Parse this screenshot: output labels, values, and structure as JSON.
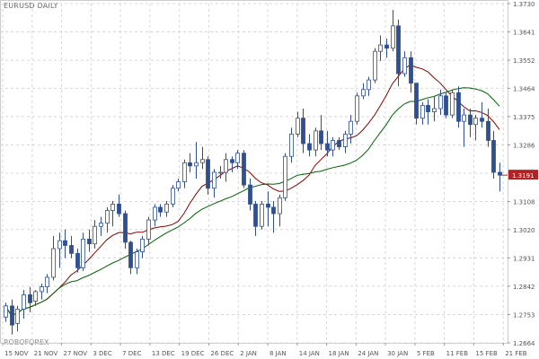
{
  "chart_data": {
    "type": "candlestick",
    "title": "EURUSD DAILY",
    "watermark": "ROBOFOREX",
    "current_price_label": "1.3191",
    "y_ticks": [
      "1.3730",
      "1.3641",
      "1.3552",
      "1.3464",
      "1.3375",
      "1.3286",
      "1.3197",
      "1.3108",
      "1.3020",
      "1.2931",
      "1.2842",
      "1.2753",
      "1.2664"
    ],
    "x_ticks": [
      "15 NOV",
      "21 NOV",
      "27 NOV",
      "3 DEC",
      "7 DEC",
      "13 DEC",
      "19 DEC",
      "26 DEC",
      "2 JAN",
      "8 JAN",
      "14 JAN",
      "18 JAN",
      "24 JAN",
      "30 JAN",
      "5 FEB",
      "11 FEB",
      "15 FEB",
      "21 FEB"
    ],
    "ylim": [
      1.2664,
      1.373
    ],
    "grid": true,
    "candles": [
      [
        1.2745,
        1.279,
        1.273,
        1.278
      ],
      [
        1.278,
        1.28,
        1.269,
        1.272
      ],
      [
        1.2725,
        1.278,
        1.27,
        1.277
      ],
      [
        1.277,
        1.283,
        1.274,
        1.2815
      ],
      [
        1.2815,
        1.284,
        1.276,
        1.279
      ],
      [
        1.2795,
        1.283,
        1.278,
        1.2825
      ],
      [
        1.2825,
        1.285,
        1.28,
        1.284
      ],
      [
        1.284,
        1.288,
        1.282,
        1.287
      ],
      [
        1.287,
        1.3,
        1.286,
        1.296
      ],
      [
        1.296,
        1.301,
        1.29,
        1.2985
      ],
      [
        1.2985,
        1.302,
        1.293,
        1.297
      ],
      [
        1.297,
        1.3,
        1.293,
        1.2945
      ],
      [
        1.2945,
        1.296,
        1.2885,
        1.29
      ],
      [
        1.29,
        1.301,
        1.289,
        1.299
      ],
      [
        1.299,
        1.302,
        1.295,
        1.2975
      ],
      [
        1.2975,
        1.305,
        1.296,
        1.303
      ],
      [
        1.303,
        1.306,
        1.3,
        1.304
      ],
      [
        1.304,
        1.309,
        1.301,
        1.308
      ],
      [
        1.308,
        1.311,
        1.303,
        1.31
      ],
      [
        1.31,
        1.313,
        1.306,
        1.307
      ],
      [
        1.307,
        1.308,
        1.296,
        1.298
      ],
      [
        1.298,
        1.2985,
        1.288,
        1.29
      ],
      [
        1.29,
        1.296,
        1.288,
        1.295
      ],
      [
        1.295,
        1.3,
        1.293,
        1.299
      ],
      [
        1.299,
        1.306,
        1.297,
        1.305
      ],
      [
        1.305,
        1.31,
        1.303,
        1.309
      ],
      [
        1.309,
        1.31,
        1.306,
        1.3075
      ],
      [
        1.3075,
        1.311,
        1.306,
        1.31
      ],
      [
        1.31,
        1.316,
        1.309,
        1.315
      ],
      [
        1.315,
        1.318,
        1.314,
        1.317
      ],
      [
        1.317,
        1.324,
        1.315,
        1.323
      ],
      [
        1.323,
        1.326,
        1.32,
        1.322
      ],
      [
        1.322,
        1.3295,
        1.318,
        1.323
      ],
      [
        1.323,
        1.328,
        1.321,
        1.324
      ],
      [
        1.324,
        1.325,
        1.313,
        1.315
      ],
      [
        1.315,
        1.321,
        1.312,
        1.32
      ],
      [
        1.32,
        1.322,
        1.318,
        1.32
      ],
      [
        1.32,
        1.326,
        1.317,
        1.324
      ],
      [
        1.324,
        1.325,
        1.32,
        1.323
      ],
      [
        1.323,
        1.327,
        1.321,
        1.326
      ],
      [
        1.326,
        1.327,
        1.315,
        1.316
      ],
      [
        1.316,
        1.318,
        1.308,
        1.31
      ],
      [
        1.31,
        1.311,
        1.3,
        1.303
      ],
      [
        1.303,
        1.311,
        1.302,
        1.31
      ],
      [
        1.31,
        1.314,
        1.303,
        1.309
      ],
      [
        1.309,
        1.311,
        1.301,
        1.307
      ],
      [
        1.307,
        1.313,
        1.303,
        1.312
      ],
      [
        1.312,
        1.326,
        1.311,
        1.325
      ],
      [
        1.325,
        1.334,
        1.323,
        1.332
      ],
      [
        1.332,
        1.339,
        1.331,
        1.337
      ],
      [
        1.337,
        1.34,
        1.326,
        1.329
      ],
      [
        1.329,
        1.332,
        1.325,
        1.327
      ],
      [
        1.327,
        1.334,
        1.325,
        1.333
      ],
      [
        1.333,
        1.338,
        1.327,
        1.329
      ],
      [
        1.329,
        1.333,
        1.325,
        1.327
      ],
      [
        1.327,
        1.331,
        1.325,
        1.33
      ],
      [
        1.33,
        1.331,
        1.327,
        1.328
      ],
      [
        1.328,
        1.333,
        1.326,
        1.332
      ],
      [
        1.332,
        1.338,
        1.329,
        1.336
      ],
      [
        1.336,
        1.345,
        1.335,
        1.344
      ],
      [
        1.344,
        1.348,
        1.343,
        1.346
      ],
      [
        1.346,
        1.35,
        1.344,
        1.349
      ],
      [
        1.349,
        1.359,
        1.348,
        1.358
      ],
      [
        1.358,
        1.363,
        1.355,
        1.36
      ],
      [
        1.36,
        1.362,
        1.356,
        1.359
      ],
      [
        1.359,
        1.371,
        1.358,
        1.366
      ],
      [
        1.366,
        1.368,
        1.347,
        1.351
      ],
      [
        1.351,
        1.358,
        1.35,
        1.356
      ],
      [
        1.356,
        1.358,
        1.345,
        1.348
      ],
      [
        1.348,
        1.348,
        1.335,
        1.337
      ],
      [
        1.337,
        1.342,
        1.335,
        1.341
      ],
      [
        1.341,
        1.343,
        1.335,
        1.339
      ],
      [
        1.339,
        1.344,
        1.336,
        1.34
      ],
      [
        1.34,
        1.346,
        1.338,
        1.344
      ],
      [
        1.344,
        1.345,
        1.337,
        1.338
      ],
      [
        1.338,
        1.346,
        1.337,
        1.345
      ],
      [
        1.345,
        1.347,
        1.334,
        1.336
      ],
      [
        1.336,
        1.34,
        1.328,
        1.338
      ],
      [
        1.338,
        1.34,
        1.331,
        1.335
      ],
      [
        1.335,
        1.338,
        1.33,
        1.337
      ],
      [
        1.337,
        1.342,
        1.334,
        1.336
      ],
      [
        1.336,
        1.34,
        1.328,
        1.33
      ],
      [
        1.33,
        1.333,
        1.318,
        1.32
      ],
      [
        1.32,
        1.323,
        1.314,
        1.3191
      ]
    ],
    "moving_averages": [
      {
        "color": "#8b0000",
        "period": 10
      },
      {
        "color": "#006400",
        "period": 20
      }
    ]
  },
  "colors": {
    "up_candle": "#ffffff",
    "down_candle": "#2f4f8f",
    "candle_outline": "#2f4f8f",
    "grid": "#d8d8d8",
    "axis_text": "#555555",
    "price_tag_bg": "#b22222"
  }
}
